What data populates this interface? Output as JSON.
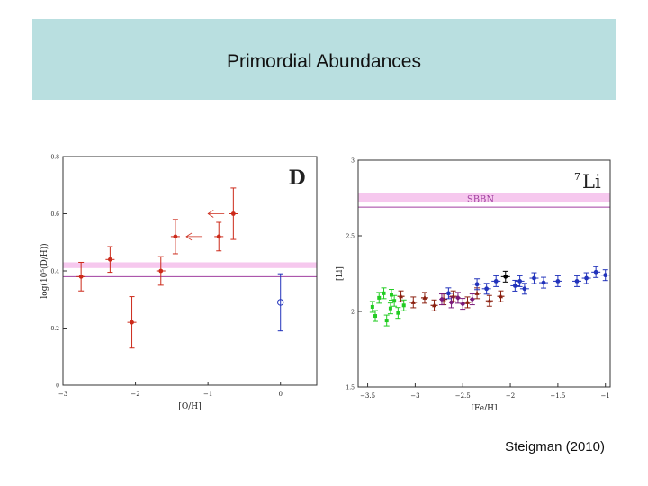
{
  "slide": {
    "title": "Primordial Abundances",
    "credit": "Steigman (2010)"
  },
  "colors": {
    "title_band": "#b9dfe0",
    "band": "#f6c8ee",
    "line": "#a13fa0",
    "red": "#cc2a1a",
    "blue": "#2233bb",
    "green": "#22cc22",
    "brown": "#8b2010",
    "purple": "#7a1a7a",
    "black": "#000000"
  },
  "chart_data": [
    {
      "type": "scatter",
      "name": "deuterium",
      "label": "D",
      "xlabel": "[O/H]",
      "ylabel": "log(10⁵(D/H))",
      "xlim": [
        -3.0,
        0.5
      ],
      "ylim": [
        0,
        0.8
      ],
      "xticks": [
        -3,
        -2,
        -1,
        0
      ],
      "xtick_labels": [
        "−3",
        "−2",
        "−1",
        "0"
      ],
      "yticks": [
        0,
        0.2,
        0.4,
        0.6,
        0.8
      ],
      "ytick_labels": [
        "0",
        "0.2",
        "0.4",
        "0.6",
        "0.8"
      ],
      "band": [
        0.41,
        0.43
      ],
      "line": 0.38,
      "points": [
        {
          "x": -2.75,
          "y": 0.38,
          "err": 0.05,
          "color": "red",
          "marker": "dot"
        },
        {
          "x": -2.35,
          "y": 0.44,
          "err": 0.045,
          "color": "red",
          "marker": "dot"
        },
        {
          "x": -2.05,
          "y": 0.22,
          "err": 0.09,
          "color": "red",
          "marker": "dot"
        },
        {
          "x": -1.65,
          "y": 0.4,
          "err": 0.05,
          "color": "red",
          "marker": "dot"
        },
        {
          "x": -1.45,
          "y": 0.52,
          "err": 0.06,
          "color": "red",
          "marker": "dot"
        },
        {
          "x": -0.85,
          "y": 0.52,
          "err": 0.05,
          "color": "red",
          "marker": "dot"
        },
        {
          "x": -0.65,
          "y": 0.6,
          "err": 0.09,
          "color": "red",
          "marker": "dot"
        },
        {
          "x": 0.0,
          "y": 0.29,
          "err": 0.1,
          "color": "blue",
          "marker": "open"
        }
      ],
      "arrows": [
        {
          "x": -0.85,
          "y": 0.6,
          "dir": "left"
        },
        {
          "x": -1.15,
          "y": 0.52,
          "dir": "left"
        }
      ]
    },
    {
      "type": "scatter",
      "name": "lithium",
      "label": "7Li",
      "label_super": "7",
      "label_main": "Li",
      "band_label": "SBBN",
      "xlabel": "[Fe/H]",
      "ylabel": "[Li]",
      "xlim": [
        -3.6,
        -0.95
      ],
      "ylim": [
        1.5,
        3.0
      ],
      "xticks": [
        -3.5,
        -3,
        -2.5,
        -2,
        -1.5,
        -1
      ],
      "xtick_labels": [
        "−3.5",
        "−3",
        "−2.5",
        "−2",
        "−1.5",
        "−1"
      ],
      "yticks": [
        1.5,
        2,
        2.5,
        3
      ],
      "ytick_labels": [
        "1.5",
        "2",
        "2.5",
        "3"
      ],
      "band": [
        2.72,
        2.78
      ],
      "line": 2.69,
      "points": [
        {
          "x": -3.45,
          "y": 2.03,
          "color": "green",
          "marker": "square"
        },
        {
          "x": -3.42,
          "y": 1.97,
          "color": "green",
          "marker": "square"
        },
        {
          "x": -3.38,
          "y": 2.09,
          "color": "green",
          "marker": "square"
        },
        {
          "x": -3.33,
          "y": 2.12,
          "color": "green",
          "marker": "square"
        },
        {
          "x": -3.3,
          "y": 1.94,
          "color": "green",
          "marker": "square"
        },
        {
          "x": -3.26,
          "y": 2.02,
          "color": "green",
          "marker": "square"
        },
        {
          "x": -3.22,
          "y": 2.07,
          "color": "green",
          "marker": "square"
        },
        {
          "x": -3.18,
          "y": 1.99,
          "color": "green",
          "marker": "square"
        },
        {
          "x": -3.12,
          "y": 2.04,
          "color": "green",
          "marker": "square"
        },
        {
          "x": -3.25,
          "y": 2.11,
          "color": "green",
          "marker": "square"
        },
        {
          "x": -3.15,
          "y": 2.1,
          "color": "brown",
          "marker": "cross"
        },
        {
          "x": -3.02,
          "y": 2.06,
          "color": "brown",
          "marker": "cross"
        },
        {
          "x": -2.9,
          "y": 2.09,
          "color": "brown",
          "marker": "cross"
        },
        {
          "x": -2.8,
          "y": 2.04,
          "color": "brown",
          "marker": "cross"
        },
        {
          "x": -2.7,
          "y": 2.08,
          "color": "brown",
          "marker": "cross"
        },
        {
          "x": -2.6,
          "y": 2.1,
          "color": "brown",
          "marker": "cross"
        },
        {
          "x": -2.45,
          "y": 2.06,
          "color": "brown",
          "marker": "cross"
        },
        {
          "x": -2.35,
          "y": 2.12,
          "color": "brown",
          "marker": "cross"
        },
        {
          "x": -2.22,
          "y": 2.07,
          "color": "brown",
          "marker": "cross"
        },
        {
          "x": -2.1,
          "y": 2.1,
          "color": "brown",
          "marker": "cross"
        },
        {
          "x": -2.72,
          "y": 2.08,
          "color": "purple",
          "marker": "diamond"
        },
        {
          "x": -2.62,
          "y": 2.06,
          "color": "purple",
          "marker": "diamond"
        },
        {
          "x": -2.55,
          "y": 2.09,
          "color": "purple",
          "marker": "diamond"
        },
        {
          "x": -2.5,
          "y": 2.05,
          "color": "purple",
          "marker": "diamond"
        },
        {
          "x": -2.4,
          "y": 2.08,
          "color": "purple",
          "marker": "diamond"
        },
        {
          "x": -2.65,
          "y": 2.12,
          "color": "blue",
          "marker": "dot"
        },
        {
          "x": -2.35,
          "y": 2.18,
          "color": "blue",
          "marker": "dot"
        },
        {
          "x": -2.25,
          "y": 2.15,
          "color": "blue",
          "marker": "dot"
        },
        {
          "x": -2.15,
          "y": 2.2,
          "color": "blue",
          "marker": "dot"
        },
        {
          "x": -1.95,
          "y": 2.17,
          "color": "blue",
          "marker": "dot"
        },
        {
          "x": -1.9,
          "y": 2.2,
          "color": "blue",
          "marker": "dot"
        },
        {
          "x": -1.85,
          "y": 2.15,
          "color": "blue",
          "marker": "dot"
        },
        {
          "x": -1.75,
          "y": 2.22,
          "color": "blue",
          "marker": "dot"
        },
        {
          "x": -1.65,
          "y": 2.19,
          "color": "blue",
          "marker": "dot"
        },
        {
          "x": -1.5,
          "y": 2.2,
          "color": "blue",
          "marker": "dot"
        },
        {
          "x": -1.3,
          "y": 2.2,
          "color": "blue",
          "marker": "dot"
        },
        {
          "x": -1.2,
          "y": 2.22,
          "color": "blue",
          "marker": "dot"
        },
        {
          "x": -1.1,
          "y": 2.26,
          "color": "blue",
          "marker": "dot"
        },
        {
          "x": -1.0,
          "y": 2.24,
          "color": "blue",
          "marker": "dot"
        },
        {
          "x": -2.05,
          "y": 2.23,
          "color": "black",
          "marker": "dot"
        }
      ]
    }
  ]
}
